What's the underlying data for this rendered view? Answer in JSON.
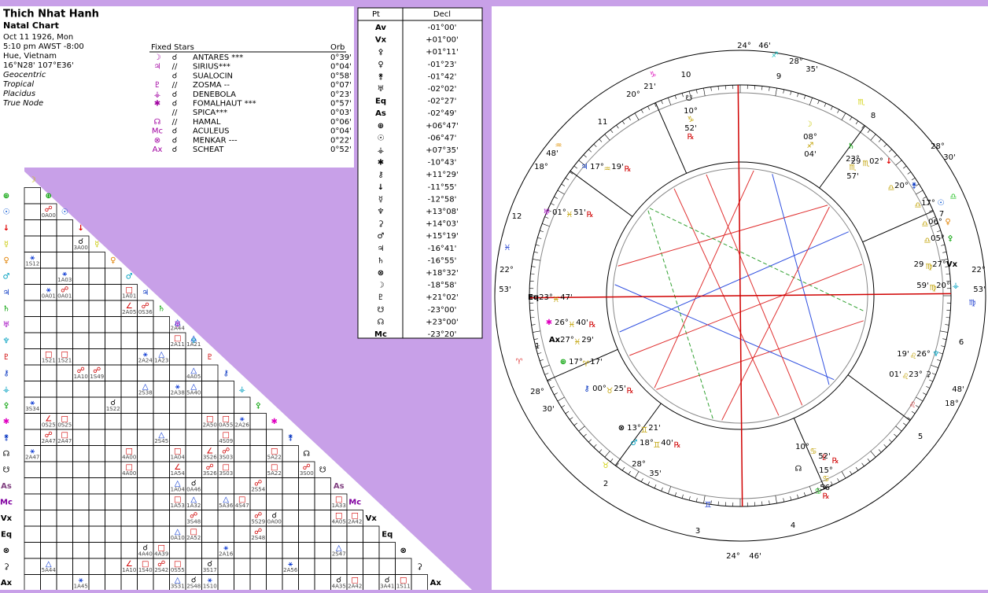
{
  "header": {
    "name": "Thich Nhat Hanh",
    "chart_type": "Natal Chart",
    "details": [
      "Oct 11 1926, Mon",
      "5:10 pm  AWST -8:00",
      "Hue, Vietnam",
      "16°N28' 107°E36'"
    ],
    "settings": [
      "Geocentric",
      "Tropical",
      "Placidus",
      "True Node"
    ]
  },
  "fixed_stars": {
    "title": "Fixed Stars",
    "orb_header": "Orb",
    "rows": [
      {
        "body": "☽",
        "aspect": "☌",
        "star": "ANTARES ***",
        "orb": "0°39'"
      },
      {
        "body": "♃",
        "aspect": "//",
        "star": "SIRIUS***",
        "orb": "0°04'"
      },
      {
        "aspect": "☌",
        "star": "SUALOCIN",
        "orb": "0°58'"
      },
      {
        "body": "♇",
        "aspect": "//",
        "star": "ZOSMA --",
        "orb": "0°07'"
      },
      {
        "body": "⚶",
        "aspect": "☌",
        "star": "DENEBOLA",
        "orb": "0°23'"
      },
      {
        "body": "✱",
        "aspect": "☌",
        "star": "FOMALHAUT ***",
        "orb": "0°57'"
      },
      {
        "aspect": "//",
        "star": "SPICA***",
        "orb": "0°03'"
      },
      {
        "body": "☊",
        "aspect": "//",
        "star": "HAMAL",
        "orb": "0°06'"
      },
      {
        "body": "Mc",
        "aspect": "☌",
        "star": "ACULEUS",
        "orb": "0°04'"
      },
      {
        "body": "⊗",
        "aspect": "☌",
        "star": "MENKAR ---",
        "orb": "0°22'"
      },
      {
        "body": "Ax",
        "aspect": "☌",
        "star": "SCHEAT",
        "orb": "0°52'"
      }
    ]
  },
  "declinations": {
    "headers": [
      "Pt",
      "Decl"
    ],
    "rows": [
      [
        "Av",
        "-01°00'"
      ],
      [
        "Vx",
        "+01°00'"
      ],
      [
        "⚴",
        "+01°11'"
      ],
      [
        "♀",
        "-01°23'"
      ],
      [
        "⚵",
        "-01°42'"
      ],
      [
        "♅",
        "-02°02'"
      ],
      [
        "Eq",
        "-02°27'"
      ],
      [
        "As",
        "-02°49'"
      ],
      [
        "⊕",
        "+06°47'"
      ],
      [
        "☉",
        "-06°47'"
      ],
      [
        "⚶",
        "+07°35'"
      ],
      [
        "✱",
        "-10°43'"
      ],
      [
        "⚷",
        "+11°29'"
      ],
      [
        "↓",
        "-11°55'"
      ],
      [
        "☿",
        "-12°58'"
      ],
      [
        "♆",
        "+13°08'"
      ],
      [
        "⚳",
        "+14°03'"
      ],
      [
        "♂",
        "+15°19'"
      ],
      [
        "♃",
        "-16°41'"
      ],
      [
        "♄",
        "-16°55'"
      ],
      [
        "⊗",
        "+18°32'"
      ],
      [
        "☽",
        "-18°58'"
      ],
      [
        "♇",
        "+21°02'"
      ],
      [
        "☋",
        "-23°00'"
      ],
      [
        "☊",
        "+23°00'"
      ],
      [
        "Mc",
        "-23°20'"
      ]
    ]
  },
  "aspect_grid": {
    "points": [
      "☽",
      "⊕",
      "☉",
      "↓",
      "☿",
      "♀",
      "♂",
      "♃",
      "♄",
      "♅",
      "♆",
      "♇",
      "⚷",
      "⚶",
      "⚴",
      "✱",
      "⚵",
      "☊",
      "☋",
      "As",
      "Mc",
      "Vx",
      "Eq",
      "⊗",
      "⚳",
      "Ax"
    ],
    "colors": [
      "#c8c800",
      "#00a000",
      "#0050d0",
      "#e00000",
      "#c8c800",
      "#e08000",
      "#00a0c0",
      "#0030c0",
      "#00a000",
      "#a000c0",
      "#00a0c0",
      "#d00000",
      "#0030c0",
      "#00a0c0",
      "#00a000",
      "#e000c0",
      "#0030c0",
      "#000000",
      "#000000",
      "#804080",
      "#8000a0",
      "#000000",
      "#000000",
      "#000000",
      "#000000",
      "#000000"
    ],
    "cells": [
      {
        "row": 2,
        "col": 1,
        "aspect": "☍",
        "label": "0A00"
      },
      {
        "row": 4,
        "col": 3,
        "aspect": "☌",
        "label": "3A00"
      },
      {
        "row": 5,
        "col": 0,
        "aspect": "⚹",
        "label": "1S12"
      },
      {
        "row": 6,
        "col": 2,
        "aspect": "⚹",
        "label": "1A03"
      },
      {
        "row": 7,
        "col": 1,
        "aspect": "⚹",
        "label": "0A01"
      },
      {
        "row": 7,
        "col": 2,
        "aspect": "☍",
        "label": "0A01"
      },
      {
        "row": 7,
        "col": 6,
        "aspect": "□",
        "label": "1A01"
      },
      {
        "row": 8,
        "col": 6,
        "aspect": "∠",
        "label": "2A05"
      },
      {
        "row": 8,
        "col": 7,
        "aspect": "☍",
        "label": "0S36"
      },
      {
        "row": 9,
        "col": 9,
        "aspect": "△",
        "label": "2A44"
      },
      {
        "row": 10,
        "col": 9,
        "aspect": "□",
        "label": "2A11"
      },
      {
        "row": 10,
        "col": 10,
        "aspect": "△",
        "label": "1A21"
      },
      {
        "row": 11,
        "col": 1,
        "aspect": "□",
        "label": "1S21"
      },
      {
        "row": 11,
        "col": 2,
        "aspect": "□",
        "label": "1S21"
      },
      {
        "row": 11,
        "col": 7,
        "aspect": "⚹",
        "label": "2A24"
      },
      {
        "row": 11,
        "col": 8,
        "aspect": "△",
        "label": "1A23"
      },
      {
        "row": 12,
        "col": 3,
        "aspect": "☍",
        "label": "1A10"
      },
      {
        "row": 12,
        "col": 4,
        "aspect": "☍",
        "label": "1S49"
      },
      {
        "row": 12,
        "col": 10,
        "aspect": "△",
        "label": "4A05"
      },
      {
        "row": 13,
        "col": 7,
        "aspect": "△",
        "label": "2S38"
      },
      {
        "row": 13,
        "col": 9,
        "aspect": "⚹",
        "label": "2A38"
      },
      {
        "row": 13,
        "col": 10,
        "aspect": "△",
        "label": "5A40"
      },
      {
        "row": 14,
        "col": 0,
        "aspect": "⚹",
        "label": "3S34"
      },
      {
        "row": 14,
        "col": 5,
        "aspect": "☌",
        "label": "1S22"
      },
      {
        "row": 15,
        "col": 1,
        "aspect": "∠",
        "label": "0S25"
      },
      {
        "row": 15,
        "col": 2,
        "aspect": "□",
        "label": "0S25"
      },
      {
        "row": 15,
        "col": 11,
        "aspect": "□",
        "label": "2A50"
      },
      {
        "row": 15,
        "col": 12,
        "aspect": "□",
        "label": "0A55"
      },
      {
        "row": 15,
        "col": 13,
        "aspect": "⚹",
        "label": "2A26"
      },
      {
        "row": 16,
        "col": 1,
        "aspect": "☍",
        "label": "2A47"
      },
      {
        "row": 16,
        "col": 2,
        "aspect": "□",
        "label": "2A47"
      },
      {
        "row": 16,
        "col": 8,
        "aspect": "△",
        "label": "2S45"
      },
      {
        "row": 16,
        "col": 12,
        "aspect": "□",
        "label": "4S09"
      },
      {
        "row": 17,
        "col": 0,
        "aspect": "⚹",
        "label": "2A47"
      },
      {
        "row": 17,
        "col": 6,
        "aspect": "□",
        "label": "4A00"
      },
      {
        "row": 17,
        "col": 9,
        "aspect": "□",
        "label": "1A04"
      },
      {
        "row": 17,
        "col": 11,
        "aspect": "∠",
        "label": "3S26"
      },
      {
        "row": 17,
        "col": 12,
        "aspect": "☍",
        "label": "3S03"
      },
      {
        "row": 17,
        "col": 15,
        "aspect": "□",
        "label": "5A22"
      },
      {
        "row": 18,
        "col": 6,
        "aspect": "□",
        "label": "4A00"
      },
      {
        "row": 18,
        "col": 9,
        "aspect": "∠",
        "label": "1A54"
      },
      {
        "row": 18,
        "col": 11,
        "aspect": "☍",
        "label": "3S26"
      },
      {
        "row": 18,
        "col": 12,
        "aspect": "□",
        "label": "3S03"
      },
      {
        "row": 18,
        "col": 15,
        "aspect": "□",
        "label": "5A22"
      },
      {
        "row": 18,
        "col": 17,
        "aspect": "☍",
        "label": "3S00"
      },
      {
        "row": 19,
        "col": 9,
        "aspect": "△",
        "label": "1A04"
      },
      {
        "row": 19,
        "col": 10,
        "aspect": "☌",
        "label": "0A46"
      },
      {
        "row": 19,
        "col": 14,
        "aspect": "☍",
        "label": "2S54"
      },
      {
        "row": 20,
        "col": 9,
        "aspect": "□",
        "label": "1A53"
      },
      {
        "row": 20,
        "col": 10,
        "aspect": "△",
        "label": "1A32"
      },
      {
        "row": 20,
        "col": 12,
        "aspect": "△",
        "label": "5A36"
      },
      {
        "row": 20,
        "col": 13,
        "aspect": "□",
        "label": "4S47"
      },
      {
        "row": 20,
        "col": 19,
        "aspect": "□",
        "label": "1A33"
      },
      {
        "row": 21,
        "col": 10,
        "aspect": "☍",
        "label": "3S48"
      },
      {
        "row": 21,
        "col": 14,
        "aspect": "☍",
        "label": "5S29"
      },
      {
        "row": 21,
        "col": 15,
        "aspect": "☌",
        "label": "0A00"
      },
      {
        "row": 21,
        "col": 19,
        "aspect": "□",
        "label": "4A05"
      },
      {
        "row": 21,
        "col": 20,
        "aspect": "□",
        "label": "2A42"
      },
      {
        "row": 22,
        "col": 9,
        "aspect": "△",
        "label": "0A10"
      },
      {
        "row": 22,
        "col": 10,
        "aspect": "□",
        "label": "2A52"
      },
      {
        "row": 22,
        "col": 14,
        "aspect": "☍",
        "label": "2S48"
      },
      {
        "row": 23,
        "col": 7,
        "aspect": "☌",
        "label": "4A40"
      },
      {
        "row": 23,
        "col": 8,
        "aspect": "□",
        "label": "4A39"
      },
      {
        "row": 23,
        "col": 12,
        "aspect": "⚹",
        "label": "2A16"
      },
      {
        "row": 23,
        "col": 19,
        "aspect": "△",
        "label": "2S47"
      },
      {
        "row": 24,
        "col": 1,
        "aspect": "△",
        "label": "5A44"
      },
      {
        "row": 24,
        "col": 6,
        "aspect": "∠",
        "label": "1A10"
      },
      {
        "row": 24,
        "col": 7,
        "aspect": "□",
        "label": "1S40"
      },
      {
        "row": 24,
        "col": 8,
        "aspect": "☍",
        "label": "2S42"
      },
      {
        "row": 24,
        "col": 9,
        "aspect": "□",
        "label": "0S55"
      },
      {
        "row": 24,
        "col": 11,
        "aspect": "☌",
        "label": "3S17"
      },
      {
        "row": 24,
        "col": 16,
        "aspect": "⚹",
        "label": "2A56"
      },
      {
        "row": 25,
        "col": 3,
        "aspect": "⚹",
        "label": "1A45"
      },
      {
        "row": 25,
        "col": 9,
        "aspect": "△",
        "label": "3S31"
      },
      {
        "row": 25,
        "col": 10,
        "aspect": "☌",
        "label": "2S48"
      },
      {
        "row": 25,
        "col": 11,
        "aspect": "⚹",
        "label": "1S10"
      },
      {
        "row": 25,
        "col": 19,
        "aspect": "☌",
        "label": "4A35"
      },
      {
        "row": 25,
        "col": 20,
        "aspect": "□",
        "label": "2A42"
      },
      {
        "row": 25,
        "col": 22,
        "aspect": "☌",
        "label": "3A41"
      },
      {
        "row": 25,
        "col": 23,
        "aspect": "□",
        "label": "1S11"
      }
    ]
  },
  "wheel": {
    "signs": [
      "♐",
      "♏",
      "♎",
      "♍",
      "♌",
      "♋",
      "♊",
      "♉",
      "♈",
      "♓",
      "♒",
      "♑"
    ],
    "sign_colors": [
      "#20c0c0",
      "#d0d000",
      "#20c020",
      "#2040d0",
      "#e04040",
      "#20c020",
      "#2040d0",
      "#d0d000",
      "#e04040",
      "#2040d0",
      "#e09000",
      "#e020c0"
    ],
    "houses": [
      "10",
      "9",
      "8",
      "7",
      "6",
      "5",
      "4",
      "3",
      "2",
      "1",
      "12",
      "11"
    ],
    "cusps": [
      "24°",
      "46'",
      "20°",
      "21'",
      "28°",
      "35'",
      "28°",
      "30'",
      "48'",
      "18°",
      "22°",
      "53'",
      "22°",
      "53'",
      "48'",
      "18°",
      "28°",
      "30'",
      "28°",
      "35'",
      "24°",
      "46'"
    ],
    "points": [
      {
        "glyph": "☋",
        "color": "#000000",
        "text": [
          "10°",
          "♑",
          "52'",
          "℞"
        ]
      },
      {
        "glyph": "☽",
        "color": "#c8c800",
        "text": [
          "08°",
          "♐",
          "04'"
        ]
      },
      {
        "glyph": "♄",
        "color": "#00a000",
        "text": [
          "23°",
          "♏",
          "57'"
        ]
      },
      {
        "glyph": "↓",
        "color": "#e00000",
        "text": [
          "02°",
          "♏",
          "29"
        ]
      },
      {
        "glyph": "⚵",
        "color": "#0030c0",
        "text": [
          "20°",
          "♎"
        ]
      },
      {
        "glyph": "☉",
        "color": "#0050d0",
        "text": [
          "17°",
          "♎"
        ]
      },
      {
        "glyph": "♀",
        "color": "#e08000",
        "text": [
          "06°",
          "♎"
        ]
      },
      {
        "glyph": "⚴",
        "color": "#00a000",
        "text": [
          "05°",
          "♎"
        ]
      },
      {
        "glyph": "Vx",
        "color": "#000000",
        "text": [
          "27°",
          "♍",
          "29"
        ]
      },
      {
        "glyph": "⚶",
        "color": "#00a0c0",
        "text": [
          "20°",
          "♍",
          "59'"
        ]
      },
      {
        "glyph": "♆",
        "color": "#00a0c0",
        "text": [
          "26°",
          "♌",
          "19'"
        ]
      },
      {
        "glyph": "⚳",
        "color": "#000000",
        "text": [
          "23°",
          "♌",
          "01'"
        ]
      },
      {
        "glyph": "♇",
        "color": "#d00000",
        "text": [
          "15°",
          "♋",
          "56'",
          "℞"
        ]
      },
      {
        "glyph": "☊",
        "color": "#000000",
        "text": [
          "10°",
          "♋",
          "52'",
          "℞"
        ]
      },
      {
        "glyph": "♂",
        "color": "#00a0c0",
        "text": [
          "18°",
          "♊",
          "40'",
          "℞"
        ]
      },
      {
        "glyph": "⊗",
        "color": "#000000",
        "text": [
          "13°",
          "♊",
          "21'"
        ]
      },
      {
        "glyph": "⚷",
        "color": "#0030c0",
        "text": [
          "00°",
          "♉",
          "25'",
          "℞"
        ]
      },
      {
        "glyph": "⊕",
        "color": "#00a000",
        "text": [
          "17°",
          "♈",
          "17'"
        ]
      },
      {
        "glyph": "Ax",
        "color": "#000000",
        "text": [
          "27°",
          "♓",
          "29'"
        ]
      },
      {
        "glyph": "✱",
        "color": "#e000c0",
        "text": [
          "26°",
          "♓",
          "40'",
          "℞"
        ]
      },
      {
        "glyph": "Eq",
        "color": "#000000",
        "text": [
          "23°",
          "♓",
          "47'"
        ]
      },
      {
        "glyph": "♅",
        "color": "#a000c0",
        "text": [
          "01°",
          "♓",
          "51'",
          "℞"
        ]
      },
      {
        "glyph": "♃",
        "color": "#0030c0",
        "text": [
          "17°",
          "♒",
          "19'",
          "℞"
        ]
      }
    ]
  }
}
